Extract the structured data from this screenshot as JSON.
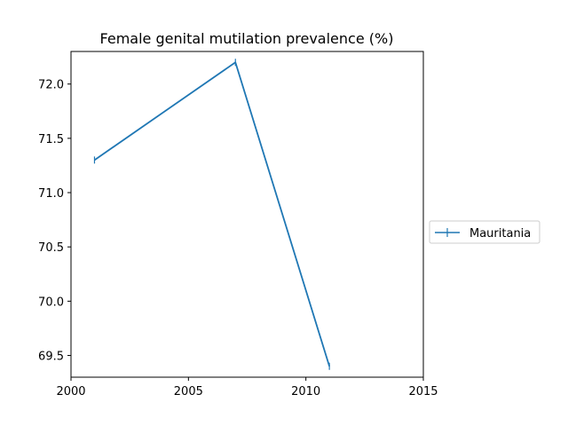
{
  "chart_data": {
    "type": "line",
    "title": "Female genital mutilation prevalence (%)",
    "xlabel": "",
    "ylabel": "",
    "xlim": [
      2000,
      2015
    ],
    "ylim": [
      69.3,
      72.3
    ],
    "x_ticks": [
      2000,
      2005,
      2010,
      2015
    ],
    "y_ticks": [
      69.5,
      70.0,
      70.5,
      71.0,
      71.5,
      72.0
    ],
    "x_tick_labels": [
      "2000",
      "2005",
      "2010",
      "2015"
    ],
    "y_tick_labels": [
      "69.5",
      "70.0",
      "70.5",
      "71.0",
      "71.5",
      "72.0"
    ],
    "grid": false,
    "legend_position": "center-right, outside plot",
    "series": [
      {
        "name": "Mauritania",
        "color": "#1f77b4",
        "marker": "vertical-tick",
        "x": [
          2001,
          2007,
          2011
        ],
        "y": [
          71.3,
          72.2,
          69.4
        ]
      }
    ]
  }
}
